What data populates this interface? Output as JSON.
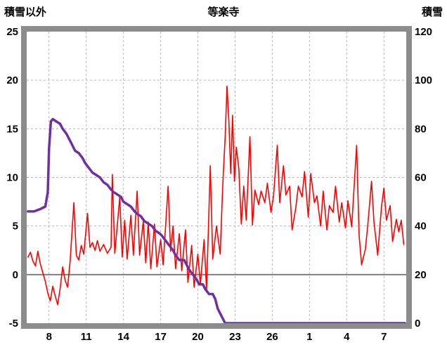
{
  "header": {
    "left_axis_title": "積雪以外",
    "title": "等楽寺",
    "right_axis_title": "積雪"
  },
  "chart_data": {
    "type": "line",
    "title": "等楽寺",
    "legend_position": "none",
    "grid": {
      "vertical": "dashed",
      "horizontal": "dashed",
      "grid_color": "#b8b8b8",
      "zero_line_color": "#808080",
      "frame_color": "#8c8c8c",
      "background": "#ffffff"
    },
    "left_axis": {
      "label": "積雪以外",
      "min": -5,
      "max": 25,
      "ticks": [
        25,
        20,
        15,
        10,
        5,
        0,
        -5
      ]
    },
    "right_axis": {
      "label": "積雪",
      "min": 0,
      "max": 120,
      "ticks": [
        120,
        100,
        80,
        60,
        40,
        20,
        0
      ]
    },
    "x_axis": {
      "min": 6.2,
      "max": 36.8,
      "ticks": [
        {
          "pos": 8,
          "label": "8"
        },
        {
          "pos": 11,
          "label": "11"
        },
        {
          "pos": 14,
          "label": "14"
        },
        {
          "pos": 17,
          "label": "17"
        },
        {
          "pos": 20,
          "label": "20"
        },
        {
          "pos": 23,
          "label": "23"
        },
        {
          "pos": 26,
          "label": "26"
        },
        {
          "pos": 29,
          "label": "1"
        },
        {
          "pos": 32,
          "label": "4"
        },
        {
          "pos": 35,
          "label": "7"
        }
      ]
    },
    "series": [
      {
        "name": "積雪以外",
        "axis": "left",
        "color": "#ff0000",
        "width": 1.6,
        "points": [
          [
            6.3,
            1.8
          ],
          [
            6.5,
            2.3
          ],
          [
            6.7,
            1.4
          ],
          [
            6.9,
            0.9
          ],
          [
            7.1,
            2.4
          ],
          [
            7.3,
            1.1
          ],
          [
            7.5,
            0.2
          ],
          [
            7.7,
            -0.7
          ],
          [
            7.9,
            -1.9
          ],
          [
            8.1,
            -2.7
          ],
          [
            8.3,
            -1.2
          ],
          [
            8.5,
            -2.2
          ],
          [
            8.7,
            -3.1
          ],
          [
            8.9,
            -1.4
          ],
          [
            9.1,
            0.8
          ],
          [
            9.3,
            -0.6
          ],
          [
            9.5,
            -1.3
          ],
          [
            9.7,
            1.4
          ],
          [
            10.0,
            7.4
          ],
          [
            10.2,
            2.0
          ],
          [
            10.4,
            1.5
          ],
          [
            10.6,
            3.0
          ],
          [
            10.8,
            2.1
          ],
          [
            11.1,
            6.3
          ],
          [
            11.3,
            2.8
          ],
          [
            11.5,
            3.3
          ],
          [
            11.7,
            2.5
          ],
          [
            11.9,
            3.5
          ],
          [
            12.1,
            2.4
          ],
          [
            12.4,
            3.1
          ],
          [
            12.7,
            2.2
          ],
          [
            13.0,
            2.8
          ],
          [
            13.1,
            10.3
          ],
          [
            13.3,
            2.2
          ],
          [
            13.5,
            5.0
          ],
          [
            13.7,
            8.0
          ],
          [
            13.9,
            1.8
          ],
          [
            14.1,
            5.6
          ],
          [
            14.3,
            1.6
          ],
          [
            14.6,
            6.1
          ],
          [
            14.8,
            2.0
          ],
          [
            15.1,
            8.6
          ],
          [
            15.3,
            2.0
          ],
          [
            15.6,
            5.5
          ],
          [
            15.8,
            1.2
          ],
          [
            16.0,
            5.4
          ],
          [
            16.2,
            0.6
          ],
          [
            16.5,
            5.2
          ],
          [
            16.7,
            0.8
          ],
          [
            17.0,
            3.6
          ],
          [
            17.2,
            1.0
          ],
          [
            17.6,
            9.1
          ],
          [
            17.8,
            2.4
          ],
          [
            18.0,
            5.0
          ],
          [
            18.2,
            0.6
          ],
          [
            18.5,
            4.2
          ],
          [
            18.7,
            0.4
          ],
          [
            19.0,
            4.6
          ],
          [
            19.2,
            -0.8
          ],
          [
            19.5,
            3.0
          ],
          [
            19.7,
            -1.3
          ],
          [
            20.0,
            2.1
          ],
          [
            20.2,
            -1.0
          ],
          [
            20.5,
            3.6
          ],
          [
            20.7,
            -1.6
          ],
          [
            21.0,
            11.2
          ],
          [
            21.2,
            1.6
          ],
          [
            21.5,
            5.0
          ],
          [
            21.8,
            2.1
          ],
          [
            22.0,
            9.0
          ],
          [
            22.2,
            14.2
          ],
          [
            22.35,
            19.4
          ],
          [
            22.5,
            15.8
          ],
          [
            22.65,
            10.4
          ],
          [
            22.8,
            16.4
          ],
          [
            22.95,
            9.6
          ],
          [
            23.1,
            13.1
          ],
          [
            23.3,
            10.9
          ],
          [
            23.5,
            5.2
          ],
          [
            23.7,
            9.1
          ],
          [
            23.9,
            5.6
          ],
          [
            24.2,
            14.2
          ],
          [
            24.4,
            5.1
          ],
          [
            24.6,
            8.7
          ],
          [
            24.9,
            7.2
          ],
          [
            25.1,
            8.6
          ],
          [
            25.4,
            7.4
          ],
          [
            25.6,
            9.4
          ],
          [
            25.9,
            6.4
          ],
          [
            26.1,
            8.1
          ],
          [
            26.4,
            13.3
          ],
          [
            26.6,
            7.4
          ],
          [
            26.9,
            11.2
          ],
          [
            27.1,
            8.2
          ],
          [
            27.4,
            9.1
          ],
          [
            27.6,
            4.6
          ],
          [
            27.9,
            6.9
          ],
          [
            28.1,
            9.1
          ],
          [
            28.4,
            8.0
          ],
          [
            28.6,
            10.6
          ],
          [
            28.9,
            5.9
          ],
          [
            29.1,
            10.4
          ],
          [
            29.4,
            7.4
          ],
          [
            29.6,
            8.1
          ],
          [
            29.9,
            5.0
          ],
          [
            30.1,
            8.6
          ],
          [
            30.4,
            4.6
          ],
          [
            30.6,
            7.1
          ],
          [
            30.9,
            6.4
          ],
          [
            31.1,
            9.1
          ],
          [
            31.4,
            5.4
          ],
          [
            31.6,
            7.4
          ],
          [
            31.9,
            4.8
          ],
          [
            32.1,
            7.6
          ],
          [
            32.4,
            4.9
          ],
          [
            32.8,
            13.3
          ],
          [
            33.0,
            4.1
          ],
          [
            33.2,
            1.0
          ],
          [
            33.5,
            2.6
          ],
          [
            33.7,
            5.1
          ],
          [
            34.0,
            9.6
          ],
          [
            34.2,
            5.4
          ],
          [
            34.5,
            2.0
          ],
          [
            34.8,
            6.9
          ],
          [
            35.0,
            8.9
          ],
          [
            35.2,
            5.6
          ],
          [
            35.5,
            7.1
          ],
          [
            35.7,
            3.4
          ],
          [
            36.0,
            5.7
          ],
          [
            36.2,
            4.4
          ],
          [
            36.4,
            5.6
          ],
          [
            36.6,
            3.1
          ]
        ]
      },
      {
        "name": "積雪",
        "axis": "right",
        "color": "#7030a0",
        "width": 3.5,
        "points": [
          [
            6.3,
            46
          ],
          [
            6.8,
            46
          ],
          [
            7.3,
            47
          ],
          [
            7.7,
            48
          ],
          [
            7.9,
            54
          ],
          [
            8.0,
            72
          ],
          [
            8.15,
            83
          ],
          [
            8.3,
            84
          ],
          [
            8.6,
            83
          ],
          [
            8.9,
            82
          ],
          [
            9.1,
            80
          ],
          [
            9.4,
            78
          ],
          [
            9.7,
            75
          ],
          [
            9.9,
            73
          ],
          [
            10.1,
            71
          ],
          [
            10.4,
            70
          ],
          [
            10.7,
            68
          ],
          [
            10.9,
            66
          ],
          [
            11.2,
            64
          ],
          [
            11.5,
            62
          ],
          [
            11.8,
            61
          ],
          [
            12.1,
            60
          ],
          [
            12.4,
            58
          ],
          [
            12.7,
            57
          ],
          [
            13.0,
            55
          ],
          [
            13.2,
            54
          ],
          [
            13.5,
            53
          ],
          [
            13.8,
            52
          ],
          [
            14.0,
            50
          ],
          [
            14.3,
            49
          ],
          [
            14.6,
            48
          ],
          [
            14.9,
            46
          ],
          [
            15.1,
            45
          ],
          [
            15.4,
            44
          ],
          [
            15.7,
            42
          ],
          [
            16.0,
            41
          ],
          [
            16.3,
            40
          ],
          [
            16.6,
            38
          ],
          [
            16.9,
            37
          ],
          [
            17.1,
            36
          ],
          [
            17.4,
            34
          ],
          [
            17.7,
            32
          ],
          [
            18.0,
            30
          ],
          [
            18.2,
            28
          ],
          [
            18.5,
            26
          ],
          [
            18.9,
            26
          ],
          [
            19.1,
            24
          ],
          [
            19.3,
            22
          ],
          [
            19.6,
            20
          ],
          [
            19.9,
            18
          ],
          [
            20.1,
            16
          ],
          [
            20.4,
            16
          ],
          [
            20.6,
            14
          ],
          [
            20.9,
            12
          ],
          [
            21.2,
            12
          ],
          [
            21.4,
            10
          ],
          [
            21.6,
            6
          ],
          [
            21.8,
            4
          ],
          [
            22.0,
            2
          ],
          [
            22.2,
            0
          ],
          [
            36.7,
            0
          ]
        ]
      }
    ]
  }
}
